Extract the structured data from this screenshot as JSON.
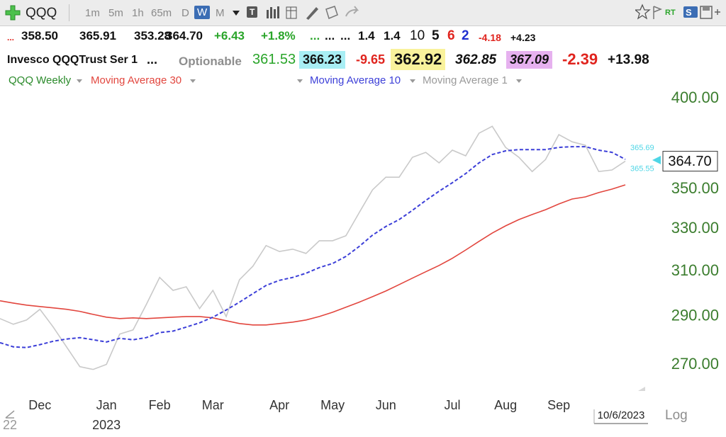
{
  "toolbar": {
    "symbol": "QQQ",
    "timeframes": [
      "1m",
      "5m",
      "1h",
      "65m",
      "D",
      "W",
      "M"
    ],
    "active": 5,
    "icon_texts": [
      "T",
      "RT",
      "S"
    ]
  },
  "quote_row1": [
    "...",
    "358.50",
    "365.91",
    "353.28",
    "364.70",
    "+6.43",
    "+1.8%",
    "...",
    "...",
    "...",
    "1.4",
    "1.4",
    "10",
    "5",
    "6",
    "2",
    "-4.18",
    "+4.23"
  ],
  "quote_row2": [
    "Invesco QQQTrust Ser 1",
    "...",
    "Optionable",
    "361.53",
    "366.23",
    "-9.65",
    "362.92",
    "362.85",
    "367.09",
    "-2.39",
    "+13.98"
  ],
  "chart_data": {
    "type": "line",
    "symbol_label": "QQQ Weekly",
    "log_scale": true,
    "scale_label": "Log",
    "date_label": "10/6/2023",
    "categories": [
      null,
      null,
      null,
      "Dec",
      null,
      null,
      null,
      null,
      "Jan",
      null,
      null,
      null,
      "Feb",
      null,
      null,
      null,
      "Mar",
      null,
      null,
      null,
      null,
      "Apr",
      null,
      null,
      null,
      "May",
      null,
      null,
      null,
      "Jun",
      null,
      null,
      null,
      null,
      "Jul",
      null,
      null,
      null,
      "Aug",
      null,
      null,
      null,
      "Sep",
      null,
      null,
      null,
      null,
      null
    ],
    "year_categories": [
      "22",
      null,
      null,
      null,
      null,
      null,
      null,
      null,
      "2023",
      null,
      null,
      null,
      null,
      null,
      null,
      null,
      null,
      null,
      null,
      null,
      null,
      null,
      null,
      null,
      null,
      null,
      null,
      null,
      null,
      null,
      null,
      null,
      null,
      null,
      null,
      null,
      null,
      null,
      null,
      null,
      null,
      null,
      null,
      null,
      null,
      null,
      null,
      null
    ],
    "series": [
      {
        "name": "Moving Average 30",
        "color": "#e2463e",
        "dashed": false,
        "values": [
          296.8,
          295.8,
          294.9,
          294.3,
          293.7,
          293.1,
          292.2,
          290.9,
          289.7,
          289.1,
          289.4,
          289.1,
          289.4,
          289.7,
          290.0,
          290.0,
          289.4,
          288.2,
          287.0,
          286.4,
          286.4,
          287.0,
          287.6,
          288.5,
          290.0,
          291.8,
          294.0,
          296.2,
          298.6,
          301.1,
          304.0,
          306.9,
          309.8,
          312.7,
          316.0,
          319.9,
          324.0,
          328.0,
          331.5,
          334.6,
          337.1,
          339.5,
          342.4,
          344.9,
          346.0,
          348.2,
          350.0,
          352.2
        ]
      },
      {
        "name": "Moving Average 10",
        "color": "#3c3fd8",
        "dashed": true,
        "values": [
          279.0,
          277.3,
          277.0,
          278.2,
          279.6,
          280.5,
          281.1,
          280.2,
          279.3,
          280.8,
          280.2,
          281.1,
          283.2,
          283.8,
          285.5,
          287.3,
          289.7,
          292.8,
          296.2,
          299.9,
          303.6,
          305.9,
          307.2,
          309.1,
          311.7,
          313.6,
          316.9,
          321.6,
          327.0,
          331.2,
          334.6,
          339.2,
          344.2,
          348.9,
          353.3,
          358.1,
          363.8,
          368.3,
          370.3,
          371.0,
          371.0,
          371.0,
          372.2,
          372.6,
          372.6,
          370.7,
          369.5,
          365.69
        ]
      },
      {
        "name": "Moving Average 1",
        "color": "#c9c9c9",
        "dashed": false,
        "values": [
          289.1,
          286.7,
          288.5,
          293.1,
          285.5,
          277.3,
          269.3,
          268.2,
          270.2,
          282.6,
          284.3,
          295.2,
          307.2,
          301.4,
          303.0,
          293.4,
          301.4,
          290.0,
          306.2,
          312.3,
          322.0,
          319.2,
          320.3,
          318.3,
          324.3,
          324.3,
          326.7,
          338.1,
          349.6,
          356.2,
          356.2,
          366.8,
          369.5,
          363.8,
          370.7,
          367.6,
          380.1,
          384.0,
          372.2,
          366.8,
          359.2,
          365.6,
          379.3,
          375.3,
          373.4,
          359.2,
          360.0,
          364.7
        ]
      }
    ],
    "ylim": [
      259,
      406
    ],
    "yticks": [
      {
        "value": 270,
        "label": "270.00"
      },
      {
        "value": 290,
        "label": "290.00"
      },
      {
        "value": 310,
        "label": "310.00"
      },
      {
        "value": 330,
        "label": "330.00"
      },
      {
        "value": 350,
        "label": "350.00"
      },
      {
        "value": 400,
        "label": "400.00"
      }
    ],
    "last_price": {
      "value": 364.7,
      "label": "364.70"
    },
    "end_labels": [
      {
        "value": 365.69,
        "label": "365.69"
      },
      {
        "value": 365.55,
        "label": "365.55"
      }
    ]
  }
}
